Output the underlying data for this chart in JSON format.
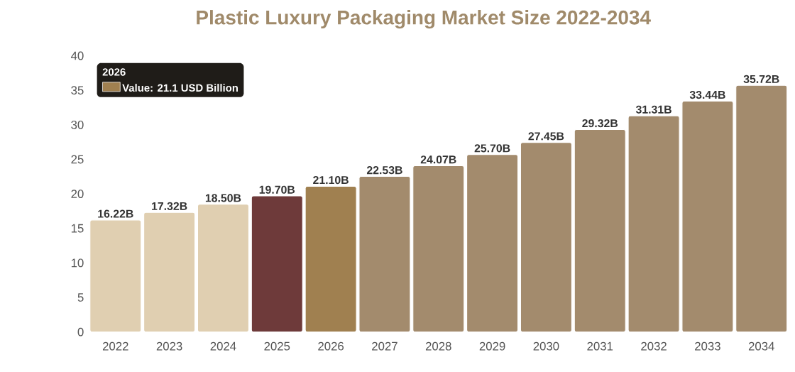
{
  "chart_data": {
    "type": "bar",
    "title": "Plastic Luxury Packaging Market Size 2022-2034",
    "categories": [
      "2022",
      "2023",
      "2024",
      "2025",
      "2026",
      "2027",
      "2028",
      "2029",
      "2030",
      "2031",
      "2032",
      "2033",
      "2034"
    ],
    "values": [
      16.22,
      17.32,
      18.5,
      19.7,
      21.1,
      22.53,
      24.07,
      25.7,
      27.45,
      29.32,
      31.31,
      33.44,
      35.72
    ],
    "value_labels": [
      "16.22B",
      "17.32B",
      "18.50B",
      "19.70B",
      "21.10B",
      "22.53B",
      "24.07B",
      "25.70B",
      "27.45B",
      "29.32B",
      "31.31B",
      "33.44B",
      "35.72B"
    ],
    "colors": [
      "#e0cfb1",
      "#e0cfb1",
      "#e0cfb1",
      "#6e3a3a",
      "#a08050",
      "#a38b6d",
      "#a38b6d",
      "#a38b6d",
      "#a38b6d",
      "#a38b6d",
      "#a38b6d",
      "#a38b6d",
      "#a38b6d"
    ],
    "ylim": [
      0,
      40
    ],
    "yticks": [
      0,
      5,
      10,
      15,
      20,
      25,
      30,
      35,
      40
    ],
    "annotations": [
      "2026",
      "Value: 21.1 USD Billion"
    ]
  }
}
